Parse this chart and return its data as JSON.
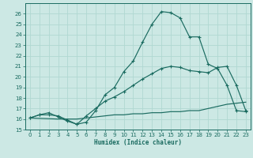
{
  "xlabel": "Humidex (Indice chaleur)",
  "bg_color": "#cce8e4",
  "grid_color": "#b0d8d2",
  "line_color": "#1a6b60",
  "xlim": [
    -0.5,
    23.5
  ],
  "ylim": [
    15,
    27
  ],
  "xticks": [
    0,
    1,
    2,
    3,
    4,
    5,
    6,
    7,
    8,
    9,
    10,
    11,
    12,
    13,
    14,
    15,
    16,
    17,
    18,
    19,
    20,
    21,
    22,
    23
  ],
  "yticks": [
    15,
    16,
    17,
    18,
    19,
    20,
    21,
    22,
    23,
    24,
    25,
    26
  ],
  "curve1_x": [
    0,
    1,
    2,
    3,
    4,
    5,
    6,
    7,
    8,
    9,
    10,
    11,
    12,
    13,
    14,
    15,
    16,
    17,
    18,
    19,
    20,
    21,
    22,
    23
  ],
  "curve1_y": [
    16.1,
    16.4,
    16.4,
    16.3,
    15.9,
    15.5,
    15.7,
    16.8,
    18.3,
    19.0,
    20.5,
    21.5,
    23.3,
    25.0,
    26.2,
    26.1,
    25.6,
    23.8,
    23.8,
    21.2,
    20.8,
    19.2,
    16.8,
    16.7
  ],
  "curve2_x": [
    0,
    3,
    4,
    5,
    6,
    7,
    8,
    9,
    10,
    11,
    12,
    13,
    14,
    15,
    16,
    17,
    18,
    19,
    20,
    21,
    22,
    23
  ],
  "curve2_y": [
    16.1,
    16.0,
    16.0,
    16.0,
    16.1,
    16.2,
    16.3,
    16.4,
    16.4,
    16.5,
    16.5,
    16.6,
    16.6,
    16.7,
    16.7,
    16.8,
    16.8,
    17.0,
    17.2,
    17.4,
    17.5,
    17.6
  ],
  "curve3_x": [
    0,
    1,
    2,
    3,
    4,
    5,
    6,
    7,
    8,
    9,
    10,
    11,
    12,
    13,
    14,
    15,
    16,
    17,
    18,
    19,
    20,
    21,
    22,
    23
  ],
  "curve3_y": [
    16.1,
    16.4,
    16.6,
    16.2,
    15.8,
    15.5,
    16.3,
    17.0,
    17.7,
    18.1,
    18.6,
    19.2,
    19.8,
    20.3,
    20.8,
    21.0,
    20.9,
    20.6,
    20.5,
    20.4,
    20.9,
    21.0,
    19.2,
    16.8
  ]
}
